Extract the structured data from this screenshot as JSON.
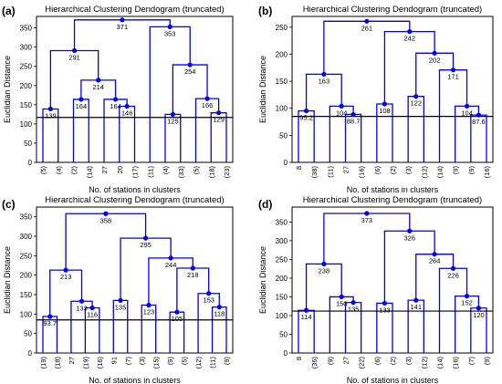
{
  "chart_data": [
    {
      "panel": "(a)",
      "type": "dendrogram",
      "title": "Hierarchical Clustering Dendogram (truncated)",
      "xlabel": "No. of stations in clusters",
      "ylabel": "Euclidian Distance",
      "ylim": [
        0,
        380
      ],
      "yticks": [
        0,
        50,
        100,
        150,
        200,
        250,
        300,
        350
      ],
      "cutoff": 117,
      "leaves": [
        "(5)",
        "(4)",
        "(2)",
        "(14)",
        "27",
        "20",
        "(17)",
        "(11)",
        "(4)",
        "(33)",
        "(5)",
        "(18)",
        "(23)"
      ],
      "nodes": [
        {
          "id": "N1",
          "height": 139,
          "label": "139",
          "left": "L0",
          "right": "L1"
        },
        {
          "id": "N2",
          "height": 164,
          "label": "164",
          "left": "L2",
          "right": "L3"
        },
        {
          "id": "N3",
          "height": 146,
          "label": "146",
          "left": "L5",
          "right": "L6"
        },
        {
          "id": "N4",
          "height": 164,
          "label": "164",
          "left": "L4",
          "right": "N3"
        },
        {
          "id": "N5",
          "height": 214,
          "label": "214",
          "left": "N2",
          "right": "N4"
        },
        {
          "id": "N6",
          "height": 291,
          "label": "291",
          "left": "N1",
          "right": "N5"
        },
        {
          "id": "N7",
          "height": 125,
          "label": "125",
          "left": "L8",
          "right": "L9"
        },
        {
          "id": "N8",
          "height": 129,
          "label": "129",
          "left": "L11",
          "right": "L12"
        },
        {
          "id": "N9",
          "height": 166,
          "label": "166",
          "left": "L10",
          "right": "N8"
        },
        {
          "id": "N10",
          "height": 254,
          "label": "254",
          "left": "N7",
          "right": "N9"
        },
        {
          "id": "N11",
          "height": 353,
          "label": "353",
          "left": "L7",
          "right": "N10"
        },
        {
          "id": "N12",
          "height": 371,
          "label": "371",
          "left": "N6",
          "right": "N11"
        }
      ]
    },
    {
      "panel": "(b)",
      "type": "dendrogram",
      "title": "Hierarchical Clustering Dendogram (truncated)",
      "xlabel": "No. of stations in clusters",
      "ylabel": "Euclidian Distance",
      "ylim": [
        0,
        270
      ],
      "yticks": [
        0,
        50,
        100,
        150,
        200,
        250
      ],
      "cutoff": 85,
      "leaves": [
        "8",
        "(38)",
        "(11)",
        "27",
        "(16)",
        "(6)",
        "(2)",
        "(3)",
        "(12)",
        "(14)",
        "(9)",
        "(9)",
        "(16)"
      ],
      "nodes": [
        {
          "id": "N1",
          "height": 95.2,
          "label": "95.2",
          "left": "L0",
          "right": "L1"
        },
        {
          "id": "N2",
          "height": 88.7,
          "label": "88.7",
          "left": "L3",
          "right": "L4"
        },
        {
          "id": "N3",
          "height": 104,
          "label": "104",
          "left": "L2",
          "right": "N2"
        },
        {
          "id": "N4",
          "height": 163,
          "label": "163",
          "left": "N1",
          "right": "N3"
        },
        {
          "id": "N5",
          "height": 108,
          "label": "108",
          "left": "L5",
          "right": "L6"
        },
        {
          "id": "N6",
          "height": 122,
          "label": "122",
          "left": "L7",
          "right": "L8"
        },
        {
          "id": "N7",
          "height": 87.6,
          "label": "87.6",
          "left": "L11",
          "right": "L12"
        },
        {
          "id": "N8",
          "height": 104,
          "label": "104",
          "left": "L10",
          "right": "N7"
        },
        {
          "id": "N9",
          "height": 171,
          "label": "171",
          "left": "L9",
          "right": "N8"
        },
        {
          "id": "N10",
          "height": 202,
          "label": "202",
          "left": "N6",
          "right": "N9"
        },
        {
          "id": "N11",
          "height": 242,
          "label": "242",
          "left": "N5",
          "right": "N10"
        },
        {
          "id": "N12",
          "height": 261,
          "label": "261",
          "left": "N4",
          "right": "N11"
        }
      ]
    },
    {
      "panel": "(c)",
      "type": "dendrogram",
      "title": "Hierarchical Clustering Dendogram (truncated)",
      "xlabel": "No. of stations in clusters",
      "ylabel": "Euclidian Distance",
      "ylim": [
        0,
        375
      ],
      "yticks": [
        0,
        50,
        100,
        150,
        200,
        250,
        300,
        350
      ],
      "cutoff": 85,
      "leaves": [
        "(19)",
        "(18)",
        "27",
        "(19)",
        "(16)",
        "91",
        "(7)",
        "(3)",
        "(15)",
        "(9)",
        "(5)",
        "(12)",
        "(11)",
        "(9)"
      ],
      "nodes": [
        {
          "id": "N1",
          "height": 93.7,
          "label": "93.7",
          "left": "L0",
          "right": "L1"
        },
        {
          "id": "N2",
          "height": 116,
          "label": "116",
          "left": "L3",
          "right": "L4"
        },
        {
          "id": "N3",
          "height": 133,
          "label": "133",
          "left": "L2",
          "right": "N2"
        },
        {
          "id": "N4",
          "height": 213,
          "label": "213",
          "left": "N1",
          "right": "N3"
        },
        {
          "id": "N5",
          "height": 135,
          "label": "135",
          "left": "L5",
          "right": "L6"
        },
        {
          "id": "N6",
          "height": 123,
          "label": "123",
          "left": "L7",
          "right": "L8"
        },
        {
          "id": "N7",
          "height": 105,
          "label": "105",
          "left": "L9",
          "right": "L10"
        },
        {
          "id": "N8",
          "height": 118,
          "label": "118",
          "left": "L12",
          "right": "L13"
        },
        {
          "id": "N9",
          "height": 153,
          "label": "153",
          "left": "L11",
          "right": "N8"
        },
        {
          "id": "N10",
          "height": 218,
          "label": "218",
          "left": "N7",
          "right": "N9"
        },
        {
          "id": "N11",
          "height": 244,
          "label": "244",
          "left": "N6",
          "right": "N10"
        },
        {
          "id": "N12",
          "height": 295,
          "label": "295",
          "left": "N5",
          "right": "N11"
        },
        {
          "id": "N13",
          "height": 358,
          "label": "358",
          "left": "N4",
          "right": "N12"
        }
      ]
    },
    {
      "panel": "(d)",
      "type": "dendrogram",
      "title": "Hierarchical Clustering Dendogram (truncated)",
      "xlabel": "No. of stations in clusters",
      "ylabel": "Euclidian Distance",
      "ylim": [
        0,
        390
      ],
      "yticks": [
        0,
        50,
        100,
        150,
        200,
        250,
        300,
        350
      ],
      "cutoff": 112,
      "leaves": [
        "8",
        "(36)",
        "(9)",
        "27",
        "(22)",
        "(6)",
        "(2)",
        "(3)",
        "(12)",
        "(14)",
        "(16)",
        "(7)",
        "(9)"
      ],
      "nodes": [
        {
          "id": "N1",
          "height": 114,
          "label": "114",
          "left": "L0",
          "right": "L1"
        },
        {
          "id": "N2",
          "height": 135,
          "label": "135",
          "left": "L3",
          "right": "L4"
        },
        {
          "id": "N3",
          "height": 150,
          "label": "150",
          "left": "L2",
          "right": "N2"
        },
        {
          "id": "N4",
          "height": 238,
          "label": "238",
          "left": "N1",
          "right": "N3"
        },
        {
          "id": "N5",
          "height": 133,
          "label": "133",
          "left": "L5",
          "right": "L6"
        },
        {
          "id": "N6",
          "height": 141,
          "label": "141",
          "left": "L7",
          "right": "L8"
        },
        {
          "id": "N7",
          "height": 120,
          "label": "120",
          "left": "L11",
          "right": "L12"
        },
        {
          "id": "N8",
          "height": 152,
          "label": "152",
          "left": "L10",
          "right": "N7"
        },
        {
          "id": "N9",
          "height": 226,
          "label": "226",
          "left": "L9",
          "right": "N8"
        },
        {
          "id": "N10",
          "height": 264,
          "label": "264",
          "left": "N6",
          "right": "N9"
        },
        {
          "id": "N11",
          "height": 326,
          "label": "326",
          "left": "N5",
          "right": "N10"
        },
        {
          "id": "N12",
          "height": 373,
          "label": "373",
          "left": "N4",
          "right": "N11"
        }
      ]
    }
  ],
  "colors": {
    "link": "#0000ee",
    "cutoff": "#000000",
    "node": "#0000ee",
    "leaf": "#000000"
  }
}
